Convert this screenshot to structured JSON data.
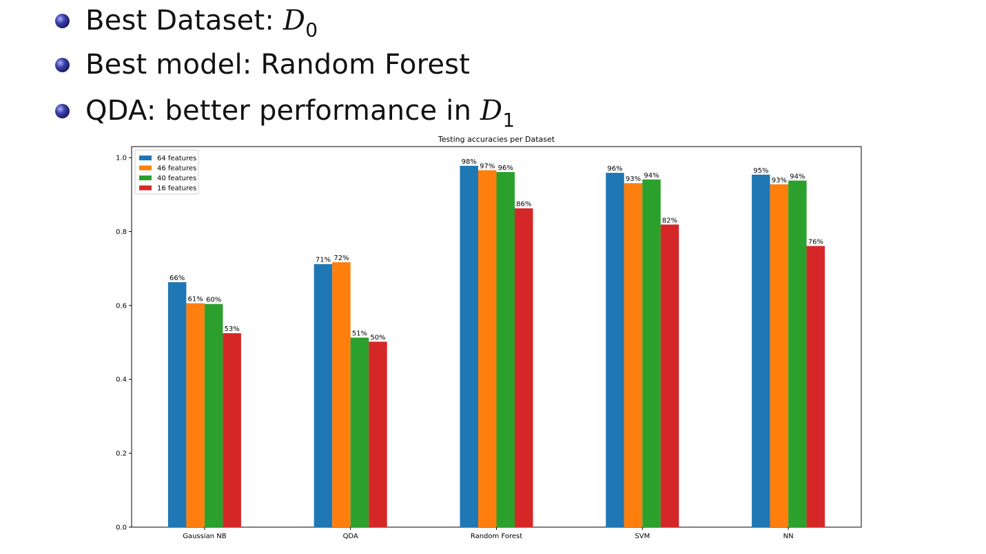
{
  "bullets": [
    {
      "text": "Best Dataset: ",
      "math": "D",
      "sub": "0"
    },
    {
      "text": "Best model: Random Forest",
      "math": "",
      "sub": ""
    },
    {
      "text": "QDA: better performance in ",
      "math": "D",
      "sub": "1"
    }
  ],
  "colors": {
    "series": [
      "#1f77b4",
      "#ff7f0e",
      "#2ca02c",
      "#d62728"
    ],
    "bullet": "#2e3192"
  },
  "chart_data": {
    "type": "bar",
    "title": "Testing accuracies per Dataset",
    "xlabel": "",
    "ylabel": "",
    "ylim": [
      0,
      1.03
    ],
    "yticks": [
      0.0,
      0.2,
      0.4,
      0.6,
      0.8,
      1.0
    ],
    "ytick_labels": [
      "0.0",
      "0.2",
      "0.4",
      "0.6",
      "0.8",
      "1.0"
    ],
    "grid": false,
    "legend_position": "top-left",
    "categories": [
      "Gaussian NB",
      "QDA",
      "Random Forest",
      "SVM",
      "NN"
    ],
    "series": [
      {
        "name": "64 features",
        "values": [
          0.663,
          0.712,
          0.978,
          0.959,
          0.954
        ],
        "labels": [
          "66%",
          "71%",
          "98%",
          "96%",
          "95%"
        ]
      },
      {
        "name": "46 features",
        "values": [
          0.606,
          0.717,
          0.966,
          0.931,
          0.928
        ],
        "labels": [
          "61%",
          "72%",
          "97%",
          "93%",
          "93%"
        ]
      },
      {
        "name": "40 features",
        "values": [
          0.604,
          0.513,
          0.961,
          0.941,
          0.938
        ],
        "labels": [
          "60%",
          "51%",
          "96%",
          "94%",
          "94%"
        ]
      },
      {
        "name": "16 features",
        "values": [
          0.525,
          0.502,
          0.863,
          0.819,
          0.761
        ],
        "labels": [
          "53%",
          "50%",
          "86%",
          "82%",
          "76%"
        ]
      }
    ]
  }
}
